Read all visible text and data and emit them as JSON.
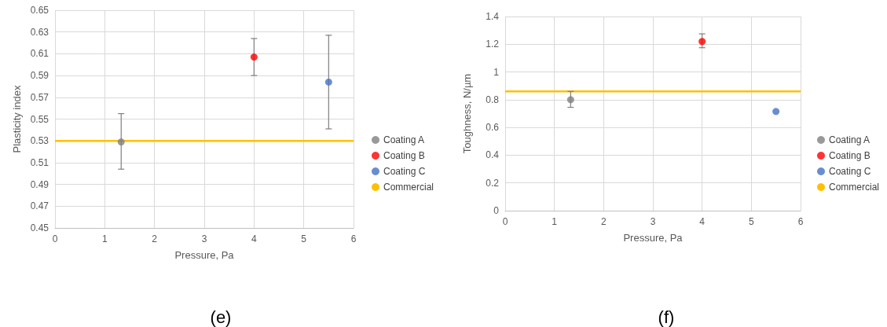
{
  "chart_data": [
    {
      "type": "scatter",
      "xlabel": "Pressure, Pa",
      "ylabel": "Plasticity index",
      "annotations": [
        "(e)"
      ],
      "xlim": [
        0,
        6
      ],
      "xticks": [
        0,
        1,
        2,
        3,
        4,
        5,
        6
      ],
      "ylim": [
        0.45,
        0.65
      ],
      "yticks": [
        0.45,
        0.47,
        0.49,
        0.51,
        0.53,
        0.55,
        0.57,
        0.59,
        0.61,
        0.63,
        0.65
      ],
      "grid": true,
      "legend": "right",
      "marker": "circle",
      "series": [
        {
          "name": "Coating A",
          "color": "#7f7f7f",
          "x": [
            1.33
          ],
          "values": [
            0.529
          ],
          "errors": [
            [
              0.504,
              0.555
            ]
          ]
        },
        {
          "name": "Coating B",
          "color": "#ff0000",
          "x": [
            4
          ],
          "values": [
            0.607
          ],
          "errors": [
            [
              0.59,
              0.624
            ]
          ]
        },
        {
          "name": "Coating C",
          "color": "#4472c4",
          "x": [
            5.5
          ],
          "values": [
            0.584
          ],
          "errors": [
            [
              0.541,
              0.627
            ]
          ]
        },
        {
          "name": "Commercial",
          "type": "line",
          "color": "#ffc000",
          "marker": "none",
          "line_style": "solid",
          "x": [
            0,
            6
          ],
          "values": [
            0.53,
            0.53
          ]
        }
      ]
    },
    {
      "type": "scatter",
      "xlabel": "Pressure, Pa",
      "ylabel": "Toughness, N/µm",
      "annotations": [
        "(f)"
      ],
      "xlim": [
        0,
        6
      ],
      "xticks": [
        0,
        1,
        2,
        3,
        4,
        5,
        6
      ],
      "ylim": [
        0,
        1.4
      ],
      "yticks": [
        0,
        0.2,
        0.4,
        0.6,
        0.8,
        1,
        1.2,
        1.4
      ],
      "grid": true,
      "legend": "right",
      "marker": "circle",
      "series": [
        {
          "name": "Coating A",
          "color": "#7f7f7f",
          "x": [
            1.33
          ],
          "values": [
            0.8
          ],
          "errors": [
            [
              0.745,
              0.86
            ]
          ]
        },
        {
          "name": "Coating B",
          "color": "#ff0000",
          "x": [
            4
          ],
          "values": [
            1.22
          ],
          "errors": [
            [
              1.175,
              1.275
            ]
          ]
        },
        {
          "name": "Coating C",
          "color": "#4472c4",
          "x": [
            5.5
          ],
          "values": [
            0.715
          ]
        },
        {
          "name": "Commercial",
          "type": "line",
          "color": "#ffc000",
          "marker": "none",
          "line_style": "solid",
          "x": [
            0,
            6
          ],
          "values": [
            0.86,
            0.86
          ]
        }
      ]
    }
  ]
}
